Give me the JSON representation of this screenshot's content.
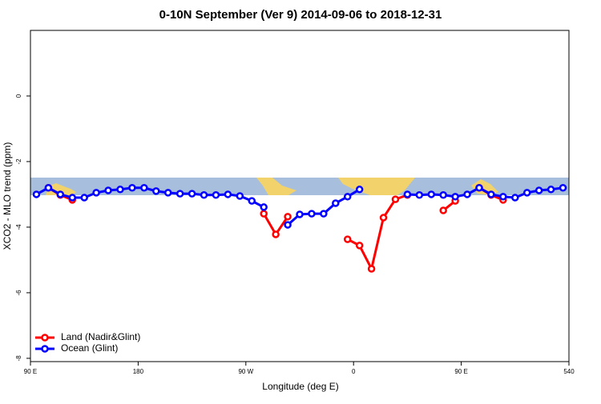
{
  "chart_data": {
    "type": "line",
    "title": "0-10N September (Ver 9)   2014-09-06 to 2018-12-31",
    "x_label": "Longitude (deg E)",
    "y_label": "XCO2 - MLO trend (ppm)",
    "x": [
      95,
      105,
      115,
      125,
      135,
      145,
      155,
      165,
      175,
      185,
      195,
      205,
      215,
      225,
      235,
      245,
      255,
      265,
      275,
      285,
      295,
      305,
      315,
      325,
      335,
      345,
      355,
      365,
      375,
      385,
      395,
      405,
      415,
      425,
      435,
      445,
      455,
      465,
      475,
      485,
      495,
      505,
      515,
      525,
      535
    ],
    "series": [
      {
        "name": "Land (Nadir&Glint)",
        "color": "#ff0000",
        "values": [
          null,
          -2.8,
          -3.02,
          -3.17,
          null,
          null,
          null,
          null,
          null,
          null,
          null,
          null,
          null,
          null,
          null,
          null,
          null,
          null,
          null,
          -3.59,
          -4.22,
          -3.68,
          null,
          null,
          null,
          null,
          -4.37,
          -4.56,
          -5.27,
          -3.71,
          -3.15,
          -3.02,
          null,
          null,
          -3.49,
          -3.2,
          null,
          -2.8,
          -3.02,
          -3.17,
          null,
          null,
          null,
          null,
          null
        ]
      },
      {
        "name": "Ocean (Glint)",
        "color": "#0000ff",
        "values": [
          -3.0,
          -2.8,
          -3.0,
          -3.1,
          -3.1,
          -2.95,
          -2.88,
          -2.85,
          -2.8,
          -2.8,
          -2.9,
          -2.95,
          -2.98,
          -2.98,
          -3.02,
          -3.02,
          -3.0,
          -3.05,
          -3.2,
          -3.39,
          null,
          -3.93,
          -3.61,
          -3.59,
          -3.59,
          -3.27,
          -3.07,
          -2.85,
          null,
          null,
          null,
          -3.0,
          -3.02,
          -3.0,
          -3.02,
          -3.07,
          -3.0,
          -2.8,
          -3.0,
          -3.07,
          -3.1,
          -2.95,
          -2.88,
          -2.85,
          -2.8
        ]
      }
    ],
    "xlim": [
      90,
      540
    ],
    "xticks": [
      {
        "value": 90,
        "label": "90 E"
      },
      180,
      {
        "value": 270,
        "label": "90 W"
      },
      {
        "value": 360,
        "label": "0"
      },
      {
        "value": 450,
        "label": "90 E"
      },
      540
    ],
    "ylim": [
      -8.1,
      2
    ],
    "yticks": [
      0,
      -2,
      -4,
      -6,
      -8
    ],
    "legend": "bottom-left"
  }
}
